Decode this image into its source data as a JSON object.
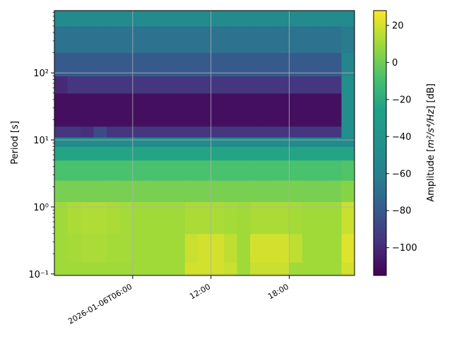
{
  "chart_data": {
    "type": "heatmap",
    "title": "",
    "xlabel": "",
    "ylabel": "Period [s]",
    "colorbar_label_prefix": "Amplitude [",
    "colorbar_label_math": "m²/s⁴/Hz",
    "colorbar_label_suffix": "] [dB]",
    "x_ticks": [
      {
        "hours": 6,
        "label": "2026-01-06T06:00"
      },
      {
        "hours": 12,
        "label": "12:00"
      },
      {
        "hours": 18,
        "label": "18:00"
      }
    ],
    "x_range_hours": [
      0,
      23
    ],
    "y_scale": "log",
    "y_range": [
      0.095,
      850
    ],
    "y_ticks": [
      {
        "value": 0.1,
        "label": "10⁻¹"
      },
      {
        "value": 1,
        "label": "10⁰"
      },
      {
        "value": 10,
        "label": "10¹"
      },
      {
        "value": 100,
        "label": "10²"
      }
    ],
    "colorbar_range": [
      -115,
      28
    ],
    "colorbar_ticks": [
      20,
      0,
      -20,
      -40,
      -60,
      -80,
      -100
    ],
    "grid": true,
    "colormap": "viridis",
    "time_bins_hours": [
      0,
      1,
      2,
      3,
      4,
      5,
      6,
      7,
      8,
      9,
      10,
      11,
      12,
      13,
      14,
      15,
      16,
      17,
      18,
      19,
      20,
      21,
      22,
      23
    ],
    "period_bands": [
      {
        "lo": 0.095,
        "hi": 0.15,
        "base": 12,
        "dev": [
          -2,
          -2,
          -2,
          -2,
          -2,
          -2,
          -2,
          -2,
          -2,
          -2,
          8,
          8,
          8,
          6,
          -2,
          6,
          6,
          6,
          -2,
          -2,
          -2,
          -2,
          8,
          -2
        ]
      },
      {
        "lo": 0.15,
        "hi": 0.4,
        "base": 10,
        "dev": [
          0,
          1,
          2,
          2,
          1,
          1,
          0,
          0,
          0,
          0,
          8,
          10,
          10,
          6,
          0,
          10,
          10,
          10,
          6,
          0,
          0,
          0,
          12,
          0
        ]
      },
      {
        "lo": 0.4,
        "hi": 1.2,
        "base": 10,
        "dev": [
          0,
          2,
          3,
          3,
          2,
          1,
          0,
          0,
          0,
          0,
          2,
          2,
          2,
          1,
          0,
          2,
          2,
          2,
          1,
          0,
          0,
          0,
          8,
          0
        ]
      },
      {
        "lo": 1.2,
        "hi": 2.5,
        "base": 2,
        "dev": [
          0,
          0,
          0,
          0,
          0,
          0,
          0,
          0,
          0,
          0,
          0,
          0,
          0,
          0,
          0,
          0,
          0,
          0,
          0,
          0,
          0,
          0,
          3,
          0
        ]
      },
      {
        "lo": 2.5,
        "hi": 5,
        "base": -8,
        "dev": [
          0,
          0,
          0,
          0,
          0,
          0,
          0,
          0,
          0,
          0,
          0,
          0,
          0,
          0,
          0,
          0,
          0,
          0,
          0,
          0,
          0,
          0,
          2,
          0
        ]
      },
      {
        "lo": 5,
        "hi": 8,
        "base": -24,
        "dev": [
          0,
          0,
          0,
          0,
          0,
          0,
          0,
          0,
          0,
          0,
          0,
          0,
          0,
          0,
          0,
          0,
          0,
          0,
          0,
          0,
          0,
          0,
          0,
          0
        ]
      },
      {
        "lo": 8,
        "hi": 11,
        "base": -50,
        "dev": [
          0,
          0,
          0,
          0,
          0,
          0,
          0,
          0,
          0,
          0,
          0,
          0,
          0,
          0,
          0,
          0,
          0,
          0,
          0,
          0,
          0,
          0,
          0,
          0
        ]
      },
      {
        "lo": 11,
        "hi": 16,
        "base": -95,
        "dev": [
          0,
          0,
          -3,
          8,
          0,
          0,
          0,
          0,
          0,
          0,
          0,
          0,
          0,
          0,
          0,
          0,
          0,
          0,
          0,
          0,
          0,
          0,
          50,
          -5
        ]
      },
      {
        "lo": 16,
        "hi": 50,
        "base": -110,
        "dev": [
          0,
          0,
          0,
          0,
          0,
          0,
          0,
          0,
          0,
          0,
          0,
          0,
          0,
          0,
          0,
          0,
          0,
          0,
          0,
          0,
          0,
          0,
          65,
          -3
        ]
      },
      {
        "lo": 50,
        "hi": 90,
        "base": -95,
        "dev": [
          -5,
          0,
          0,
          0,
          0,
          0,
          0,
          0,
          0,
          0,
          0,
          0,
          0,
          0,
          0,
          0,
          0,
          0,
          0,
          0,
          0,
          0,
          50,
          -5
        ]
      },
      {
        "lo": 90,
        "hi": 200,
        "base": -80,
        "dev": [
          0,
          0,
          0,
          0,
          0,
          0,
          0,
          0,
          0,
          0,
          0,
          0,
          0,
          0,
          0,
          0,
          0,
          0,
          0,
          0,
          0,
          0,
          25,
          0
        ]
      },
      {
        "lo": 200,
        "hi": 500,
        "base": -68,
        "dev": [
          0,
          0,
          0,
          0,
          0,
          0,
          0,
          0,
          0,
          0,
          0,
          0,
          0,
          0,
          0,
          0,
          0,
          0,
          0,
          0,
          0,
          0,
          5,
          0
        ]
      },
      {
        "lo": 500,
        "hi": 850,
        "base": -50,
        "dev": [
          0,
          0,
          0,
          0,
          0,
          0,
          0,
          0,
          0,
          0,
          0,
          0,
          0,
          0,
          0,
          0,
          0,
          0,
          0,
          0,
          0,
          0,
          0,
          0
        ]
      }
    ]
  }
}
